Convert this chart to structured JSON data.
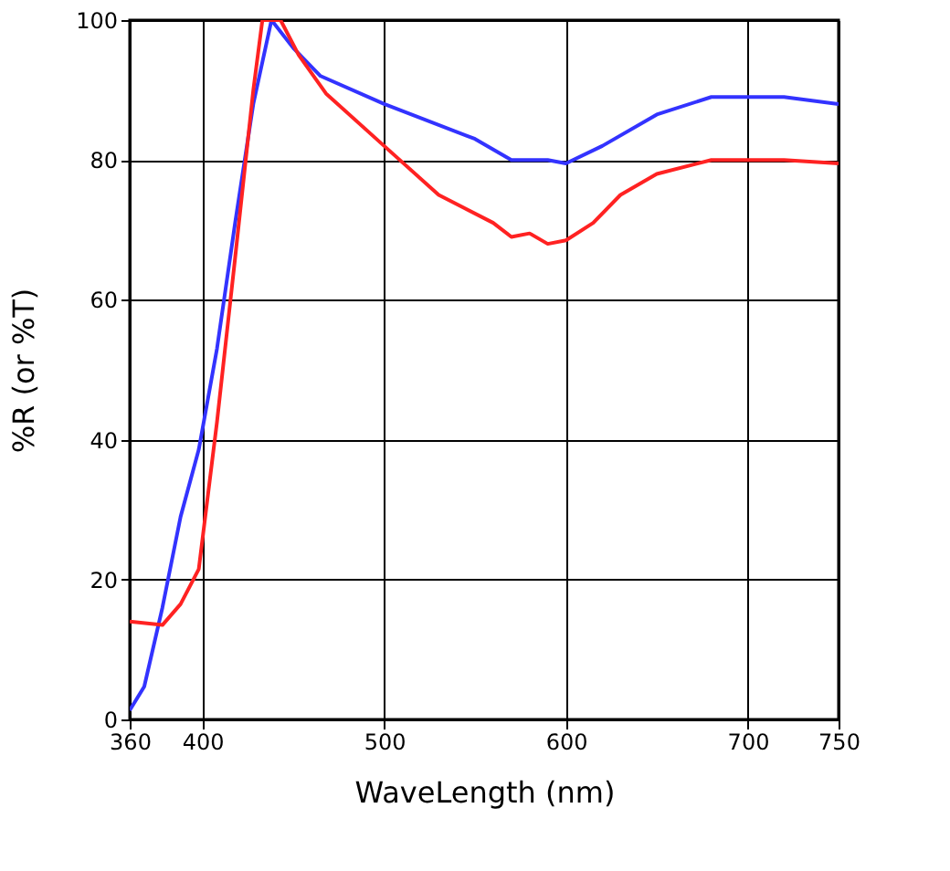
{
  "chart_data": {
    "type": "line",
    "xlabel": "WaveLength (nm)",
    "ylabel": "%R (or %T)",
    "xlim": [
      360,
      750
    ],
    "ylim": [
      0,
      100
    ],
    "xticks": [
      360,
      400,
      500,
      600,
      700,
      750
    ],
    "yticks": [
      0,
      20,
      40,
      60,
      80,
      100
    ],
    "grid": true,
    "legend": false,
    "line_style": "solid",
    "marker": "none",
    "series": [
      {
        "color": "#3333ff",
        "x": [
          360,
          368,
          378,
          388,
          398,
          408,
          418,
          428,
          438,
          450,
          465,
          500,
          550,
          570,
          590,
          600,
          620,
          650,
          680,
          720,
          750
        ],
        "values": [
          1.3,
          4.7,
          16,
          29,
          38.6,
          53,
          71,
          88,
          100,
          96,
          92,
          88,
          83,
          80,
          80,
          79.5,
          82,
          86.5,
          89,
          89,
          88
        ]
      },
      {
        "color": "#ff2222",
        "x": [
          360,
          378,
          388,
          398,
          408,
          418,
          428,
          433,
          443,
          453,
          468,
          500,
          530,
          560,
          570,
          580,
          590,
          600,
          615,
          630,
          650,
          680,
          720,
          750
        ],
        "values": [
          14,
          13.5,
          16.5,
          21.5,
          42.5,
          66,
          90,
          100,
          100,
          95,
          89.5,
          82,
          75,
          71,
          69,
          69.5,
          68,
          68.5,
          71,
          75,
          78,
          80,
          80,
          79.5
        ]
      }
    ]
  }
}
